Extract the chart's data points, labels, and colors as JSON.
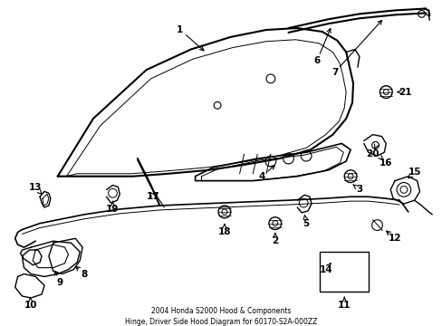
{
  "title": "2004 Honda S2000 Hood & Components\nHinge, Driver Side Hood Diagram for 60170-S2A-000ZZ",
  "bg_color": "#ffffff",
  "line_color": "#000000",
  "fig_width": 4.89,
  "fig_height": 3.6,
  "dpi": 100
}
